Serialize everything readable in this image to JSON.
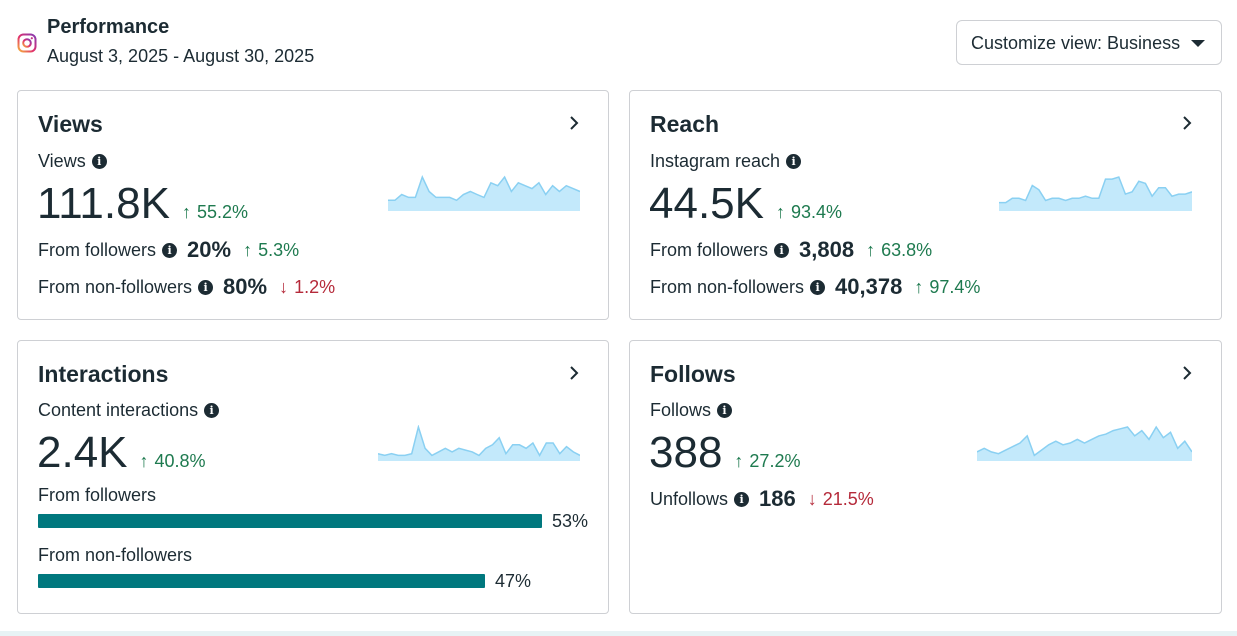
{
  "header": {
    "title": "Performance",
    "date_range": "August 3, 2025 - August 30, 2025",
    "customize_label": "Customize view: Business"
  },
  "colors": {
    "accent_teal": "#00787e",
    "positive": "#1e7a4f",
    "negative": "#b52a3a",
    "spark_fill": "#c3e9fb",
    "spark_line": "#8ad0f2"
  },
  "views": {
    "title": "Views",
    "metric_label": "Views",
    "value": "111.8K",
    "change": "55.2%",
    "from_followers_label": "From followers",
    "from_followers_value": "20%",
    "from_followers_change": "5.3%",
    "from_non_followers_label": "From non-followers",
    "from_non_followers_value": "80%",
    "from_non_followers_change": "1.2%"
  },
  "reach": {
    "title": "Reach",
    "metric_label": "Instagram reach",
    "value": "44.5K",
    "change": "93.4%",
    "from_followers_label": "From followers",
    "from_followers_value": "3,808",
    "from_followers_change": "63.8%",
    "from_non_followers_label": "From non-followers",
    "from_non_followers_value": "40,378",
    "from_non_followers_change": "97.4%"
  },
  "interactions": {
    "title": "Interactions",
    "metric_label": "Content interactions",
    "value": "2.4K",
    "change": "40.8%",
    "from_followers_label": "From followers",
    "from_followers_pct": "53%",
    "from_followers_share": 0.53,
    "from_non_followers_label": "From non-followers",
    "from_non_followers_pct": "47%",
    "from_non_followers_share": 0.47
  },
  "follows": {
    "title": "Follows",
    "metric_label": "Follows",
    "value": "388",
    "change": "27.2%",
    "unfollows_label": "Unfollows",
    "unfollows_value": "186",
    "unfollows_change": "21.5%"
  },
  "sparklines": {
    "views": [
      3,
      3,
      5,
      4,
      4,
      11,
      6,
      4,
      4,
      4,
      3,
      5,
      6,
      5,
      4,
      9,
      8,
      11,
      6,
      9,
      8,
      7,
      9,
      5,
      8,
      6,
      8,
      7,
      6
    ],
    "reach": [
      3,
      3,
      5,
      5,
      4,
      11,
      9,
      4,
      5,
      5,
      4,
      5,
      5,
      6,
      5,
      5,
      14,
      14,
      15,
      7,
      8,
      13,
      12,
      6,
      10,
      10,
      6,
      7,
      7,
      8
    ],
    "interactions": [
      3,
      2,
      3,
      2,
      2,
      3,
      18,
      6,
      2,
      4,
      6,
      4,
      6,
      5,
      4,
      2,
      6,
      8,
      12,
      3,
      8,
      8,
      6,
      9,
      2,
      9,
      9,
      3,
      7,
      4,
      2
    ],
    "follows": [
      4,
      6,
      4,
      3,
      5,
      7,
      9,
      13,
      2,
      5,
      8,
      10,
      8,
      9,
      11,
      9,
      11,
      13,
      14,
      16,
      17,
      18,
      13,
      16,
      11,
      18,
      12,
      15,
      6,
      10,
      4
    ]
  }
}
